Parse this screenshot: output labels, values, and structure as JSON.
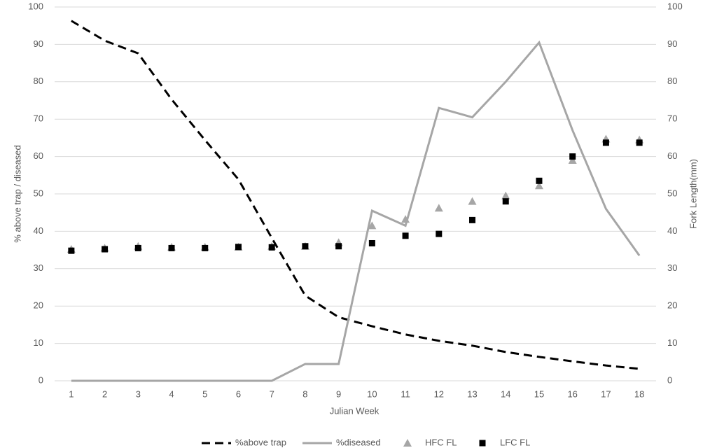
{
  "chart_data": {
    "type": "line",
    "x_label": "Julian Week",
    "y_label": "% above trap / diseased",
    "y2_label": "Fork Length(mm)",
    "categories": [
      1,
      2,
      3,
      4,
      5,
      6,
      7,
      8,
      9,
      10,
      11,
      12,
      13,
      14,
      15,
      16,
      17,
      18
    ],
    "ylim": [
      0,
      100
    ],
    "yticks": [
      0,
      10,
      20,
      30,
      40,
      50,
      60,
      70,
      80,
      90,
      100
    ],
    "y2lim": [
      0,
      100
    ],
    "y2ticks": [
      0,
      10,
      20,
      30,
      40,
      50,
      60,
      70,
      80,
      90,
      100
    ],
    "grid": true,
    "legend": "bottom",
    "series": [
      {
        "name": "%above trap",
        "color": "#000000",
        "kind": "line",
        "dash": true,
        "values": [
          96.3,
          91,
          87.6,
          75.3,
          64.4,
          53.9,
          38.2,
          22.8,
          17,
          14.6,
          12.4,
          10.7,
          9.4,
          7.7,
          6.4,
          5.2,
          4.1,
          3.2
        ]
      },
      {
        "name": "%diseased",
        "color": "#a6a6a6",
        "kind": "line",
        "dash": false,
        "values": [
          0,
          0,
          0,
          0,
          0,
          0,
          0,
          4.5,
          4.5,
          45.5,
          41.5,
          73,
          70.5,
          80,
          90.5,
          67,
          46,
          33.5
        ]
      },
      {
        "name": "HFC FL",
        "color": "#a6a6a6",
        "kind": "scatter",
        "marker": "triangle",
        "axis": "y2",
        "values": [
          35.2,
          35.5,
          36,
          35.8,
          35.8,
          35.8,
          36,
          36,
          37,
          41.5,
          43.2,
          46.2,
          48,
          49.5,
          52.2,
          59,
          64.7,
          64.5
        ]
      },
      {
        "name": "LFC FL",
        "color": "#000000",
        "kind": "scatter",
        "marker": "square",
        "axis": "y2",
        "values": [
          34.8,
          35.2,
          35.5,
          35.5,
          35.5,
          35.8,
          35.7,
          36,
          36,
          36.8,
          38.8,
          39.3,
          43,
          48,
          53.5,
          60,
          63.7,
          63.7
        ]
      }
    ]
  }
}
